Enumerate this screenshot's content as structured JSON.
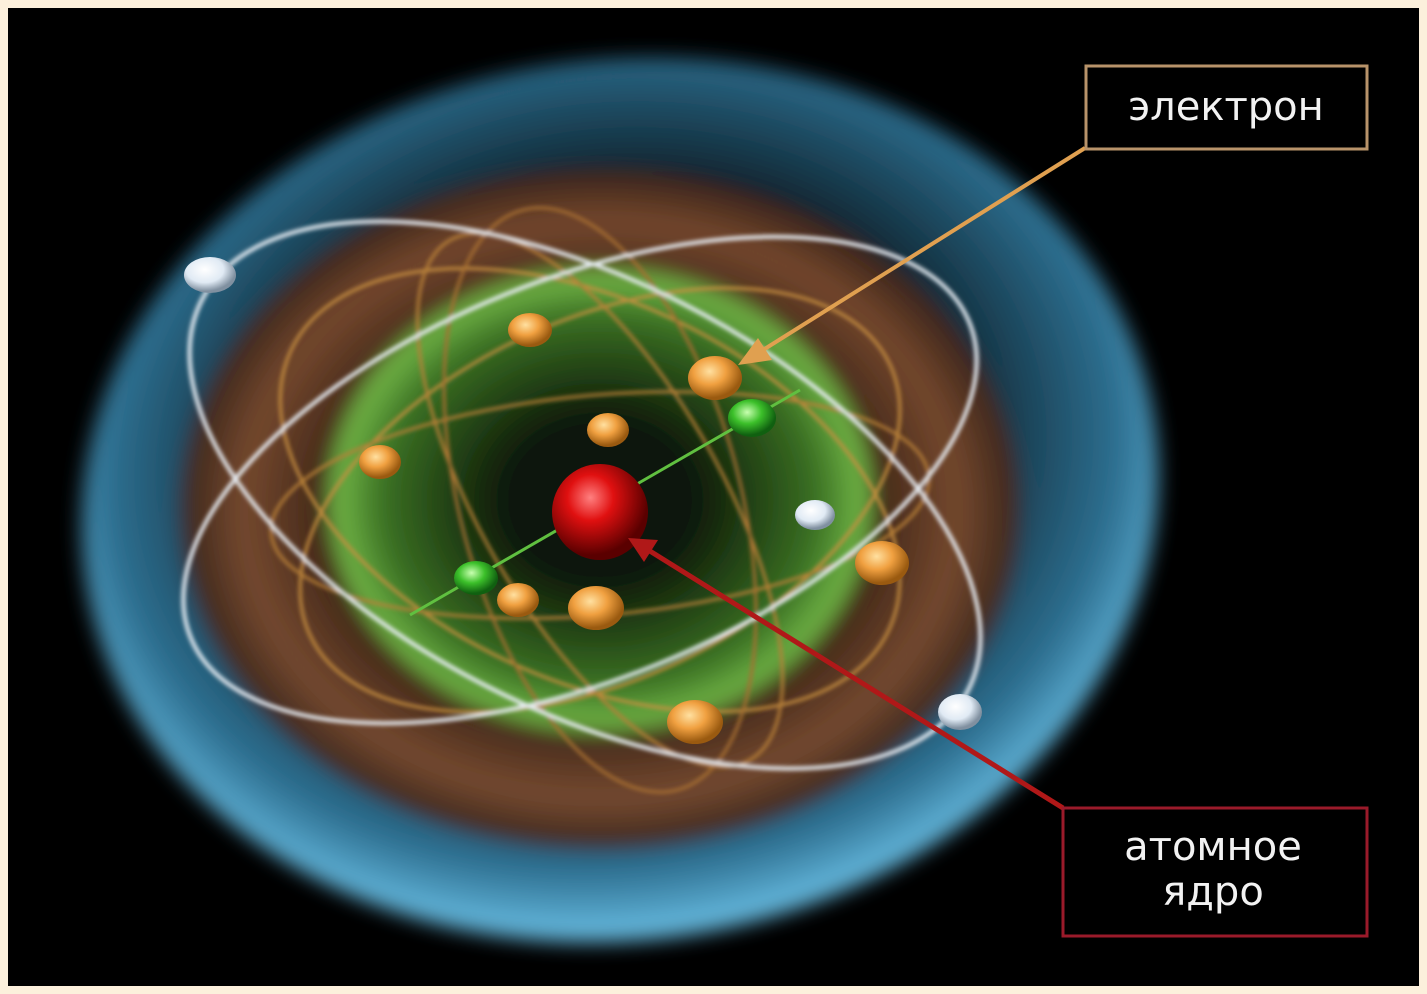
{
  "labels": {
    "electron": "электрон",
    "nucleus": [
      "атомное",
      "ядро"
    ]
  }
}
